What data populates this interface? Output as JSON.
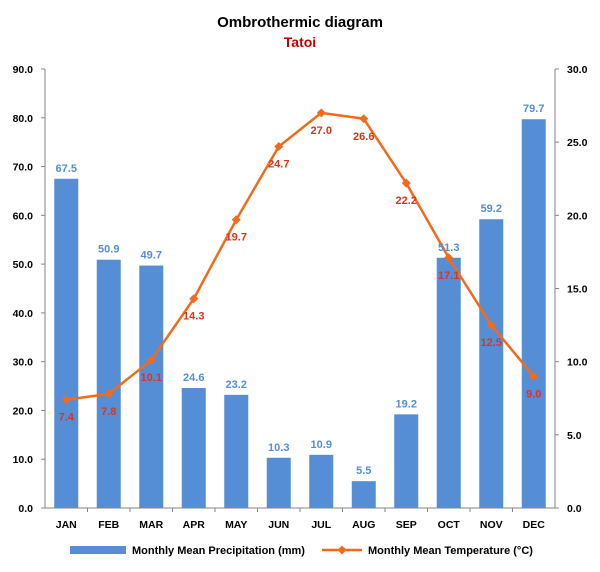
{
  "chart_data": {
    "type": "bar+line",
    "title": "Ombrothermic diagram",
    "subtitle": "Tatoi",
    "categories": [
      "JAN",
      "FEB",
      "MAR",
      "APR",
      "MAY",
      "JUN",
      "JUL",
      "AUG",
      "SEP",
      "OCT",
      "NOV",
      "DEC"
    ],
    "series": [
      {
        "name": "Monthly Mean Precipitation (mm)",
        "type": "bar",
        "axis": "left",
        "values": [
          67.5,
          50.9,
          49.7,
          24.6,
          23.2,
          10.3,
          10.9,
          5.5,
          19.2,
          51.3,
          59.2,
          79.7
        ],
        "labels": [
          "67.5",
          "50.9",
          "49.7",
          "24.6",
          "23.2",
          "10.3",
          "10.9",
          "5.5",
          "19.2",
          "51.3",
          "59.2",
          "79.7"
        ]
      },
      {
        "name": "Monthly Mean Temperature (°C)",
        "type": "line",
        "axis": "right",
        "values": [
          7.4,
          7.8,
          10.1,
          14.3,
          19.7,
          24.7,
          27.0,
          26.6,
          22.2,
          17.1,
          12.5,
          9.0
        ],
        "labels": [
          "7.4",
          "7.8",
          "10.1",
          "14.3",
          "19.7",
          "24.7",
          "27.0",
          "26.6",
          "22.2",
          "17.1",
          "12.5",
          "9.0"
        ]
      }
    ],
    "y_left": {
      "lim": [
        0,
        90
      ],
      "ticks": [
        "0.0",
        "10.0",
        "20.0",
        "30.0",
        "40.0",
        "50.0",
        "60.0",
        "70.0",
        "80.0",
        "90.0"
      ]
    },
    "y_right": {
      "lim": [
        0,
        30
      ],
      "ticks": [
        "0.0",
        "5.0",
        "10.0",
        "15.0",
        "20.0",
        "25.0",
        "30.0"
      ]
    },
    "grid": false,
    "legend_position": "bottom",
    "colors": {
      "bar": "#558ED5",
      "bar_label": "#558ED5",
      "line": "#F26B1D",
      "line_label": "#E0321F",
      "subtitle": "#C00000"
    }
  }
}
